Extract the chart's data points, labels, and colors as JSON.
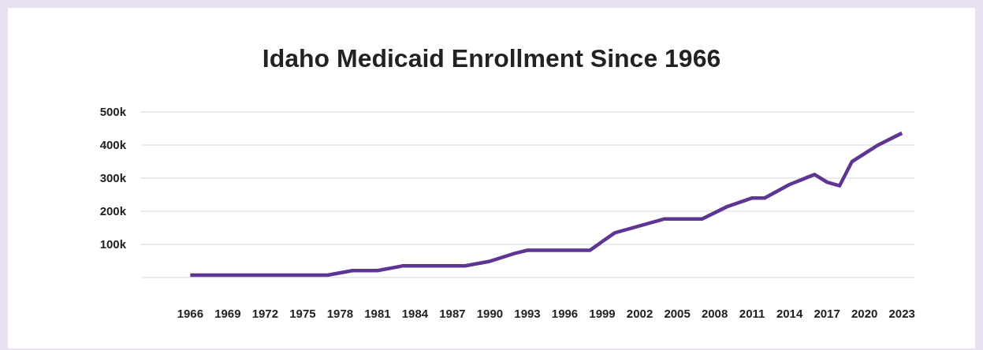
{
  "chart_data": {
    "type": "line",
    "title": "Idaho Medicaid Enrollment Since 1966",
    "x": [
      1966,
      1977,
      1979,
      1981,
      1983,
      1988,
      1990,
      1992,
      1993,
      1998,
      2000,
      2004,
      2007,
      2009,
      2011,
      2012,
      2014,
      2016,
      2017,
      2018,
      2019,
      2021,
      2023
    ],
    "series": [
      {
        "color": "#5e3592",
        "values": [
          7000,
          7000,
          21000,
          21000,
          35000,
          35000,
          49000,
          73000,
          82000,
          82000,
          135000,
          177000,
          177000,
          214000,
          240000,
          240000,
          281000,
          311000,
          288000,
          277000,
          350000,
          398000,
          436000
        ]
      }
    ],
    "xlim": [
      1962,
      2024
    ],
    "xticks": [
      1966,
      1969,
      1972,
      1975,
      1978,
      1981,
      1984,
      1987,
      1990,
      1993,
      1996,
      1999,
      2002,
      2005,
      2008,
      2011,
      2014,
      2017,
      2020,
      2023
    ],
    "ylim": [
      0,
      500000
    ],
    "yticks": [
      {
        "value": 0,
        "label": null
      },
      {
        "value": 100000,
        "label": "100k"
      },
      {
        "value": 200000,
        "label": "200k"
      },
      {
        "value": 300000,
        "label": "300k"
      },
      {
        "value": 400000,
        "label": "400k"
      },
      {
        "value": 500000,
        "label": "500k"
      }
    ],
    "grid": "y",
    "legend": false,
    "marker": "none",
    "line_style": "solid"
  }
}
